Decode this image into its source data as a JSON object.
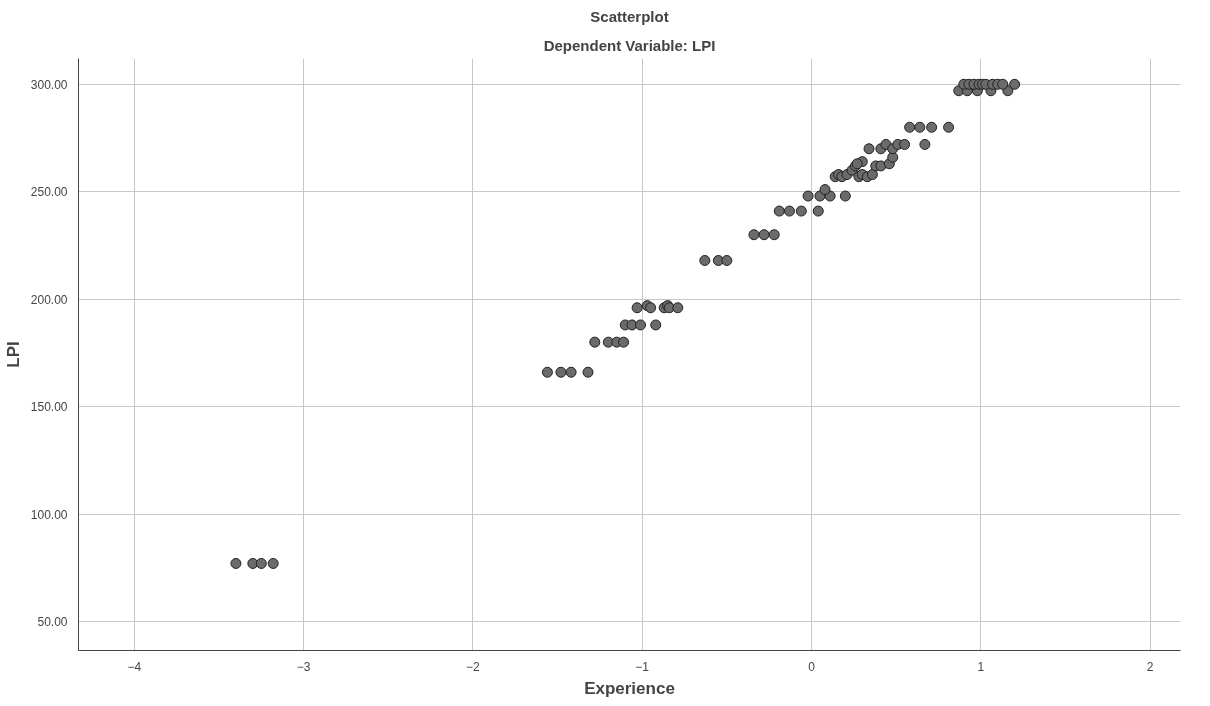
{
  "chart_data": {
    "type": "scatter",
    "title": "Scatterplot",
    "subtitle": "Dependent Variable: LPI",
    "xlabel": "Experience",
    "ylabel": "LPI",
    "marker": "circle",
    "grid": true,
    "xlim": [
      -4.33,
      2.18
    ],
    "ylim": [
      36.5,
      312
    ],
    "xticks": [
      -4,
      -3,
      -2,
      -1,
      0,
      1,
      2
    ],
    "yticks": [
      {
        "value": 50,
        "label": "50.00"
      },
      {
        "value": 100,
        "label": "100.00"
      },
      {
        "value": 150,
        "label": "150.00"
      },
      {
        "value": 200,
        "label": "200.00"
      },
      {
        "value": 250,
        "label": "250.00"
      },
      {
        "value": 300,
        "label": "300.00"
      }
    ],
    "series": [
      {
        "color": "#6b6b6b",
        "x": [
          -3.4,
          -3.3,
          -3.25,
          -3.18,
          -1.56,
          -1.48,
          -1.42,
          -1.32,
          -1.28,
          -1.2,
          -1.15,
          -1.11,
          -1.1,
          -1.06,
          -1.01,
          -0.92,
          -1.03,
          -0.97,
          -0.95,
          -0.87,
          -0.85,
          -0.84,
          -0.79,
          -0.63,
          -0.55,
          -0.5,
          -0.34,
          -0.28,
          -0.22,
          -0.19,
          -0.13,
          -0.06,
          0.04,
          -0.02,
          0.05,
          0.11,
          0.2,
          0.08,
          0.14,
          0.16,
          0.18,
          0.21,
          0.24,
          0.26,
          0.28,
          0.3,
          0.33,
          0.36,
          0.38,
          0.3,
          0.27,
          0.41,
          0.46,
          0.48,
          0.34,
          0.41,
          0.44,
          0.48,
          0.51,
          0.55,
          0.67,
          0.58,
          0.64,
          0.71,
          0.81,
          0.87,
          0.92,
          0.98,
          1.06,
          1.16,
          0.9,
          0.93,
          0.96,
          0.99,
          1.01,
          1.03,
          1.07,
          1.1,
          1.13,
          1.2
        ],
        "values": [
          77,
          77,
          77,
          77,
          166,
          166,
          166,
          166,
          180,
          180,
          180,
          180,
          188,
          188,
          188,
          188,
          196,
          197,
          196,
          196,
          197,
          196,
          196,
          218,
          218,
          218,
          230,
          230,
          230,
          241,
          241,
          241,
          241,
          248,
          248,
          248,
          248,
          251,
          257,
          258,
          257,
          258,
          260,
          262,
          257,
          258,
          257,
          258,
          262,
          264,
          263,
          262,
          263,
          266,
          270,
          270,
          272,
          270,
          272,
          272,
          272,
          280,
          280,
          280,
          280,
          297,
          297,
          297,
          297,
          297,
          300,
          300,
          300,
          300,
          300,
          300,
          300,
          300,
          300,
          300
        ]
      }
    ]
  }
}
